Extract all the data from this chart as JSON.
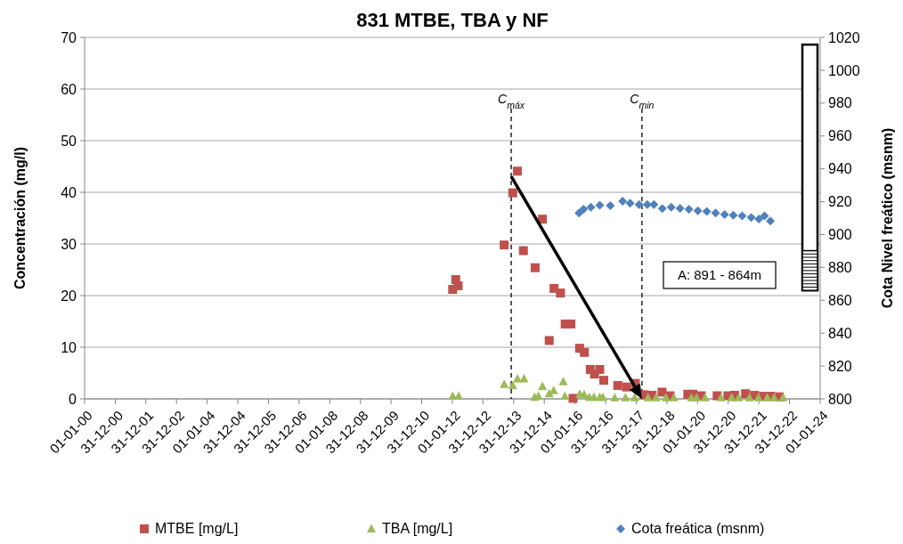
{
  "chart_data": {
    "type": "scatter",
    "title": "831 MTBE, TBA y NF",
    "ylabel": "Concentración (mg/l)",
    "y2label": "Cota Nivel freático (msnm)",
    "xlim": [
      "2000-01-01",
      "2024-01-01"
    ],
    "xticks": [
      {
        "value": "2000-01-01",
        "label": "01-01-00"
      },
      {
        "value": "2000-12-31",
        "label": "31-12-00"
      },
      {
        "value": "2001-12-31",
        "label": "31-12-01"
      },
      {
        "value": "2002-12-31",
        "label": "31-12-02"
      },
      {
        "value": "2004-01-01",
        "label": "01-01-04"
      },
      {
        "value": "2004-12-31",
        "label": "31-12-04"
      },
      {
        "value": "2005-12-31",
        "label": "31-12-05"
      },
      {
        "value": "2006-12-31",
        "label": "31-12-06"
      },
      {
        "value": "2008-01-01",
        "label": "01-01-08"
      },
      {
        "value": "2008-12-31",
        "label": "31-12-08"
      },
      {
        "value": "2009-12-31",
        "label": "31-12-09"
      },
      {
        "value": "2010-12-31",
        "label": "31-12-10"
      },
      {
        "value": "2012-01-01",
        "label": "01-01-12"
      },
      {
        "value": "2012-12-31",
        "label": "31-12-12"
      },
      {
        "value": "2013-12-31",
        "label": "31-12-13"
      },
      {
        "value": "2014-12-31",
        "label": "31-12-14"
      },
      {
        "value": "2016-01-01",
        "label": "01-01-16"
      },
      {
        "value": "2016-12-31",
        "label": "31-12-16"
      },
      {
        "value": "2017-12-31",
        "label": "31-12-17"
      },
      {
        "value": "2018-12-31",
        "label": "31-12-18"
      },
      {
        "value": "2020-01-01",
        "label": "01-01-20"
      },
      {
        "value": "2020-12-31",
        "label": "31-12-20"
      },
      {
        "value": "2021-12-31",
        "label": "31-12-21"
      },
      {
        "value": "2022-12-31",
        "label": "31-12-22"
      },
      {
        "value": "2024-01-01",
        "label": "01-01-24"
      }
    ],
    "ylim": [
      0,
      70
    ],
    "yticks": [
      0,
      10,
      20,
      30,
      40,
      50,
      60,
      70
    ],
    "y2lim": [
      800,
      1020
    ],
    "y2ticks": [
      800,
      820,
      840,
      860,
      880,
      900,
      920,
      940,
      960,
      980,
      1000,
      1020
    ],
    "grid": "y",
    "legend": "bottom",
    "ref_lines": [
      {
        "axis": "x",
        "value": "2013-12-02",
        "label": "C$_{máx}$",
        "line_style": "dashed",
        "color": "#000000"
      },
      {
        "axis": "x",
        "value": "2018-03-09",
        "label": "C$_{min}$",
        "line_style": "dashed",
        "color": "#000000"
      }
    ],
    "annotations": [
      "A: 891 - 864m"
    ],
    "series": [
      {
        "name": "MTBE [mg/L]",
        "color": "#c0504d",
        "marker": "square",
        "x": [
          "2012-01-04",
          "2012-02-10",
          "2012-03-09",
          "2013-09-09",
          "2013-12-20",
          "2014-02-14",
          "2014-04-26",
          "2014-09-13",
          "2014-12-09",
          "2015-02-28",
          "2015-04-26",
          "2015-07-12",
          "2015-09-06",
          "2015-11-14",
          "2015-12-09",
          "2016-02-25",
          "2016-04-22",
          "2016-07-01",
          "2016-08-21",
          "2016-10-22",
          "2016-12-09",
          "2017-05-25",
          "2017-09-06",
          "2017-12-20",
          "2018-04-04",
          "2018-07-08",
          "2018-11-03",
          "2019-02-07",
          "2019-09-06",
          "2019-11-07",
          "2020-02-14",
          "2020-08-21",
          "2020-12-27",
          "2021-03-20",
          "2021-07-26",
          "2021-11-10",
          "2022-02-25",
          "2022-05-18",
          "2022-09-02"
        ],
        "values": [
          21.2,
          23.1,
          21.9,
          29.8,
          39.9,
          44.1,
          28.7,
          25.4,
          34.8,
          11.3,
          21.4,
          20.5,
          14.5,
          14.5,
          0.1,
          9.8,
          9.0,
          5.7,
          4.8,
          5.7,
          3.6,
          2.6,
          2.3,
          3.0,
          0.8,
          0.7,
          1.3,
          0.6,
          0.9,
          0.9,
          0.6,
          0.6,
          0.6,
          0.7,
          1.0,
          0.7,
          0.5,
          0.5,
          0.4
        ]
      },
      {
        "name": "TBA [mg/L]",
        "color": "#9bbb59",
        "marker": "triangle",
        "x": [
          "2012-01-04",
          "2012-03-16",
          "2013-09-09",
          "2013-12-20",
          "2014-02-14",
          "2014-05-03",
          "2014-09-06",
          "2014-10-22",
          "2014-12-09",
          "2015-02-28",
          "2015-04-22",
          "2015-08-14",
          "2015-09-02",
          "2016-02-28",
          "2016-04-19",
          "2016-06-20",
          "2016-08-14",
          "2016-10-22",
          "2016-11-28",
          "2017-04-19",
          "2017-08-25",
          "2017-12-13",
          "2018-05-20",
          "2018-08-25",
          "2018-12-20",
          "2019-03-25",
          "2019-10-20",
          "2019-12-20",
          "2020-03-30",
          "2020-10-05",
          "2021-02-10",
          "2021-05-05",
          "2021-09-10",
          "2021-12-25",
          "2022-04-10",
          "2022-07-01",
          "2022-10-15"
        ],
        "values": [
          0.5,
          0.5,
          2.8,
          2.6,
          3.9,
          3.9,
          0.3,
          0.5,
          2.4,
          1.0,
          1.6,
          3.3,
          0.5,
          0.9,
          0.8,
          0.3,
          0.3,
          0.3,
          0.3,
          0.2,
          0.2,
          0.2,
          0.2,
          0.2,
          0.2,
          0.2,
          0.2,
          0.2,
          0.2,
          0.2,
          0.2,
          0.2,
          0.2,
          0.2,
          0.2,
          0.2,
          0.2
        ]
      },
      {
        "name": "Cota freática (msnm)",
        "color": "#4f81bd",
        "marker": "diamond",
        "axis": "y2",
        "x": [
          "2016-02-18",
          "2016-04-12",
          "2016-07-08",
          "2016-10-22",
          "2017-02-25",
          "2017-07-22",
          "2017-10-19",
          "2018-02-03",
          "2018-05-11",
          "2018-07-30",
          "2018-11-07",
          "2019-02-21",
          "2019-06-06",
          "2019-09-20",
          "2020-01-04",
          "2020-04-19",
          "2020-08-03",
          "2020-11-18",
          "2021-03-02",
          "2021-06-16",
          "2021-10-01",
          "2022-01-01",
          "2022-03-09",
          "2022-05-18"
        ],
        "values": [
          913.1,
          915.4,
          916.7,
          917.8,
          917.6,
          920.3,
          919.1,
          918.2,
          918.2,
          918.2,
          915.8,
          916.7,
          916.0,
          915.4,
          914.5,
          914.0,
          913.1,
          912.2,
          911.8,
          911.3,
          910.4,
          909.5,
          911.3,
          908.2
        ]
      }
    ]
  }
}
